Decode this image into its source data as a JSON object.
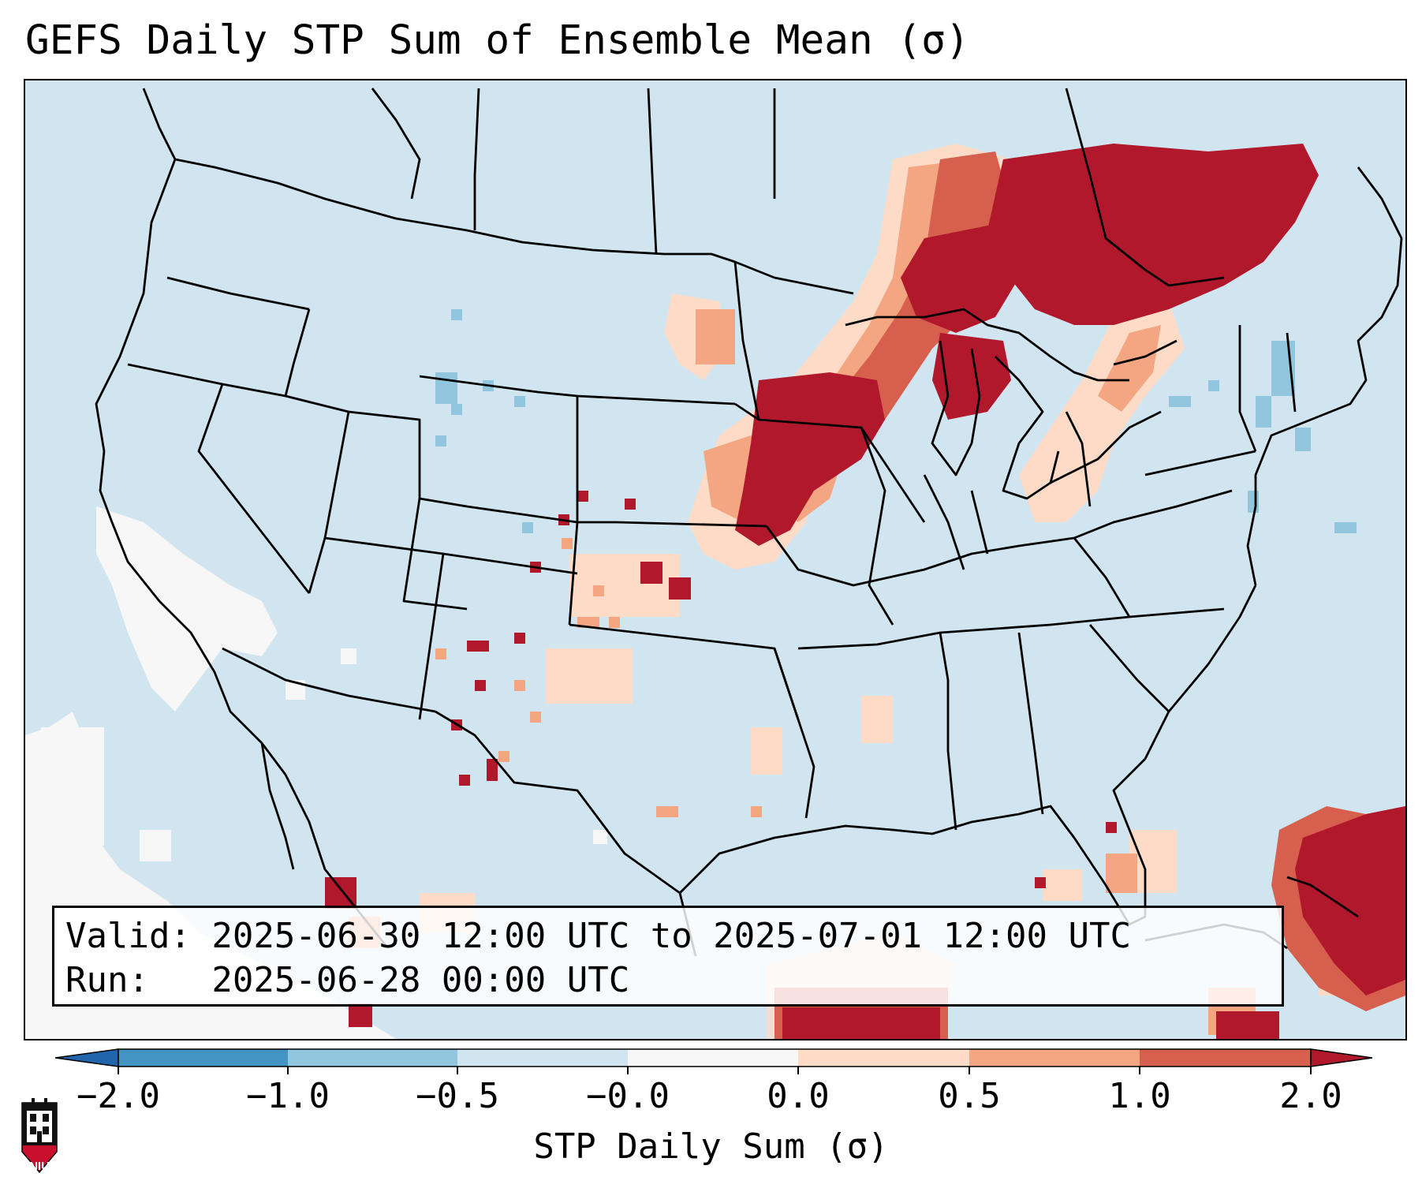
{
  "title": "GEFS Daily STP Sum of Ensemble Mean (σ)",
  "info": {
    "valid": "Valid: 2025-06-30 12:00 UTC to 2025-07-01 12:00 UTC",
    "run": "Run:   2025-06-28 00:00 UTC"
  },
  "colorbar": {
    "label": "STP Daily Sum (σ)",
    "ticks": [
      "−2.0",
      "−1.0",
      "−0.5",
      "−0.0",
      "0.0",
      "0.5",
      "1.0",
      "2.0"
    ],
    "colors": [
      "#2166ac",
      "#4393c3",
      "#92c5de",
      "#d1e5f0",
      "#f7f7f7",
      "#fddbc7",
      "#f4a582",
      "#d6604d",
      "#b2182b"
    ]
  },
  "logo": {
    "text": "NIU",
    "icon": "niu-university-logo"
  },
  "map": {
    "background_color": "#d1e5f0",
    "regions": [
      {
        "name": "upper-great-lakes-canada",
        "level": "2.0+"
      },
      {
        "name": "iowa-wisconsin-michigan",
        "level": "2.0+"
      },
      {
        "name": "western-atlantic-bahamas",
        "level": "2.0+"
      },
      {
        "name": "pacific-offshore",
        "level": "-0.0 to 0.0"
      },
      {
        "name": "new-england-coast",
        "level": "-1.0 to -0.5"
      }
    ]
  }
}
